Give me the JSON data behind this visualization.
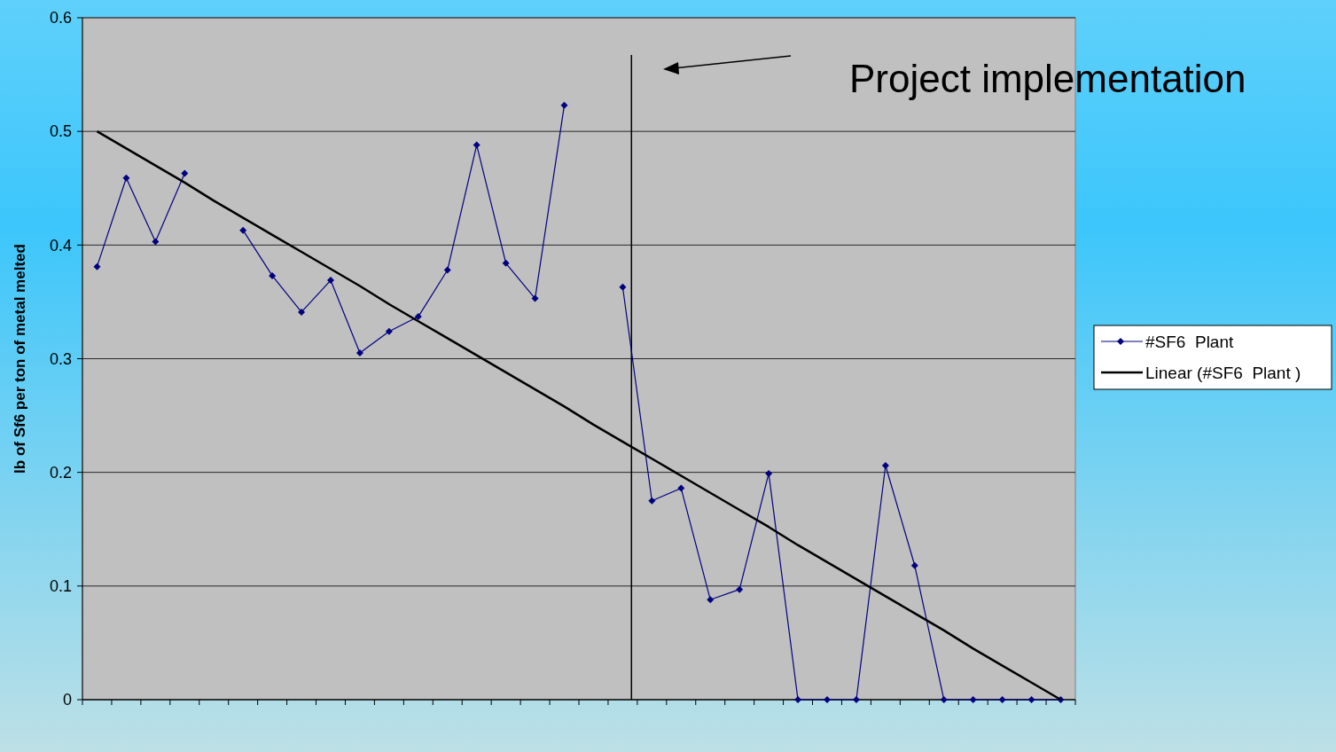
{
  "chart_data": {
    "type": "line",
    "ylabel": "lb of Sf6 per ton of metal melted",
    "categories": [
      null,
      null,
      null,
      null,
      null,
      null,
      null,
      null,
      null,
      null,
      null,
      null,
      null,
      null,
      null,
      null,
      null,
      null,
      null,
      null,
      null,
      null,
      null,
      null,
      null,
      null,
      null,
      null,
      null,
      null,
      null,
      null,
      null,
      null
    ],
    "series": [
      {
        "name": "#SF6  Plant",
        "color": "#000080",
        "marker": "diamond",
        "values": [
          0.381,
          0.459,
          0.403,
          0.463,
          null,
          0.413,
          0.373,
          0.341,
          0.369,
          0.305,
          0.324,
          0.337,
          0.378,
          0.488,
          0.384,
          0.353,
          0.523,
          null,
          0.363,
          0.175,
          0.186,
          0.088,
          0.097,
          0.199,
          0,
          0,
          0,
          0.206,
          0.118,
          0,
          0,
          0,
          0,
          0
        ]
      },
      {
        "name": "Linear (#SF6  Plant )",
        "color": "#000000",
        "marker": "none",
        "values": [
          0.5,
          0.485,
          0.47,
          0.455,
          0.439,
          0.424,
          0.409,
          0.394,
          0.379,
          0.364,
          0.348,
          0.333,
          0.318,
          0.303,
          0.288,
          0.273,
          0.258,
          0.242,
          0.227,
          0.212,
          0.197,
          0.182,
          0.167,
          0.152,
          0.136,
          0.121,
          0.106,
          0.091,
          0.076,
          0.061,
          0.045,
          0.03,
          0.015,
          0
        ]
      }
    ],
    "ylim": [
      0,
      0.6
    ],
    "yticks": [
      0,
      0.1,
      0.2,
      0.3,
      0.4,
      0.5,
      0.6
    ],
    "grid": "y",
    "legend": "right",
    "annotations": [
      "Project implementation"
    ]
  }
}
